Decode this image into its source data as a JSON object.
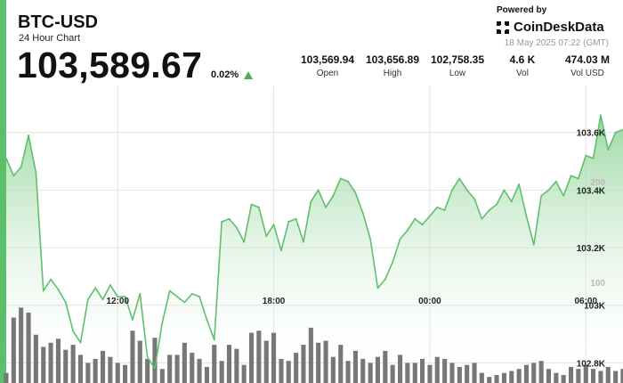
{
  "header": {
    "title": "BTC-USD",
    "subtitle": "24 Hour Chart",
    "price": "103,589.67",
    "change": "0.02%",
    "powered_by": "Powered by",
    "brand": "CoinDeskData",
    "timestamp": "18 May 2025 07:22 (GMT)"
  },
  "stats": [
    {
      "value": "103,569.94",
      "label": "Open"
    },
    {
      "value": "103,656.89",
      "label": "High"
    },
    {
      "value": "102,758.35",
      "label": "Low"
    },
    {
      "value": "4.6 K",
      "label": "Vol"
    },
    {
      "value": "474.03 M",
      "label": "Vol USD"
    }
  ],
  "colors": {
    "accent": "#5cbf6a",
    "line": "#5fbf6c",
    "area_top": "#8fd497",
    "volume": "#777777",
    "up_arrow": "#4caf50"
  },
  "chart_data": {
    "type": "line",
    "title": "BTC-USD",
    "price_axis": {
      "ticks": [
        "103.6K",
        "103.4K",
        "103.2K",
        "103K",
        "102.8K"
      ],
      "tick_values": [
        103600,
        103400,
        103200,
        103000,
        102800
      ],
      "ylim": [
        102730,
        103760
      ]
    },
    "time_axis": {
      "labels": [
        "12:00",
        "18:00",
        "00:00",
        "06:00"
      ],
      "label_index": [
        15,
        36,
        57,
        78
      ],
      "points": 84
    },
    "volume_axis": {
      "ticks": [
        "200",
        "100"
      ],
      "tick_values": [
        200,
        100
      ],
      "ylim": [
        0,
        295
      ]
    },
    "grid": true,
    "series": [
      {
        "values": [
          103510,
          103450,
          103480,
          103590,
          103460,
          103050,
          103090,
          103055,
          103010,
          102910,
          102870,
          103020,
          103060,
          103020,
          103070,
          103030,
          103030,
          102950,
          103040,
          102820,
          102780,
          102940,
          103050,
          103030,
          103010,
          103040,
          103030,
          102950,
          102880,
          103290,
          103300,
          103270,
          103220,
          103350,
          103340,
          103240,
          103280,
          103190,
          103290,
          103300,
          103220,
          103360,
          103400,
          103340,
          103380,
          103440,
          103430,
          103390,
          103320,
          103230,
          103060,
          103090,
          103150,
          103230,
          103260,
          103300,
          103280,
          103310,
          103340,
          103330,
          103400,
          103440,
          103400,
          103370,
          103300,
          103330,
          103350,
          103400,
          103360,
          103420,
          103310,
          103210,
          103380,
          103400,
          103430,
          103380,
          103450,
          103440,
          103520,
          103510,
          103660,
          103540,
          103600,
          103610
        ]
      },
      {
        "name": "Volume",
        "values": [
          10,
          65,
          75,
          70,
          48,
          36,
          40,
          44,
          33,
          38,
          28,
          20,
          24,
          32,
          26,
          20,
          18,
          52,
          42,
          24,
          45,
          14,
          28,
          28,
          40,
          30,
          24,
          16,
          38,
          22,
          38,
          34,
          18,
          50,
          52,
          42,
          50,
          24,
          22,
          30,
          38,
          55,
          40,
          42,
          26,
          38,
          22,
          32,
          24,
          20,
          26,
          32,
          18,
          28,
          20,
          20,
          24,
          18,
          26,
          24,
          20,
          16,
          18,
          20,
          10,
          6,
          8,
          10,
          12,
          14,
          18,
          20,
          22,
          14,
          10,
          8,
          16,
          14,
          18,
          14,
          12,
          16,
          12,
          14
        ]
      }
    ]
  }
}
